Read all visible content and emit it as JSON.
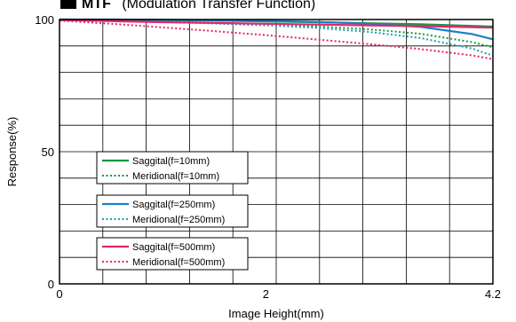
{
  "chart_data": {
    "type": "line",
    "title": "MTF  (Modulation Transfer Function)",
    "title_marker": "■",
    "title_bold_part": "MTF",
    "title_rest": "(Modulation Transfer Function)",
    "xlabel": "Image Height(mm)",
    "ylabel": "Response(%)",
    "xlim": [
      0,
      4.2
    ],
    "ylim": [
      0,
      100
    ],
    "x_ticks": [
      "0",
      "2",
      "4.2"
    ],
    "y_ticks": [
      "0",
      "50",
      "100"
    ],
    "grid": true,
    "legend_position": "lower-left",
    "legend_groups": [
      [
        "Saggital(f=10mm)",
        "Meridional(f=10mm)"
      ],
      [
        "Saggital(f=250mm)",
        "Meridional(f=250mm)"
      ],
      [
        "Saggital(f=500mm)",
        "Meridional(f=500mm)"
      ]
    ],
    "series": [
      {
        "name": "Saggital(f=10mm)",
        "color": "#1a9641",
        "style": "solid",
        "x": [
          0,
          0.5,
          1.0,
          1.5,
          2.0,
          2.5,
          3.0,
          3.5,
          4.0,
          4.2
        ],
        "y": [
          100,
          99.9,
          99.8,
          99.6,
          99.3,
          99.0,
          98.6,
          98.2,
          97.6,
          97.3
        ]
      },
      {
        "name": "Meridional(f=10mm)",
        "color": "#1a9641",
        "style": "dotted",
        "x": [
          0,
          0.5,
          1.0,
          1.5,
          2.0,
          2.5,
          3.0,
          3.5,
          4.0,
          4.2
        ],
        "y": [
          100,
          99.7,
          99.3,
          98.8,
          98.2,
          97.4,
          96.3,
          94.6,
          91.4,
          89.5
        ]
      },
      {
        "name": "Saggital(f=250mm)",
        "color": "#1a7fc4",
        "style": "solid",
        "x": [
          0,
          0.5,
          1.0,
          1.5,
          2.0,
          2.5,
          3.0,
          3.5,
          4.0,
          4.2
        ],
        "y": [
          100,
          100,
          99.9,
          99.7,
          99.5,
          99.1,
          98.4,
          97.2,
          94.5,
          92.5
        ]
      },
      {
        "name": "Meridional(f=250mm)",
        "color": "#1a9fb4",
        "style": "dotted",
        "x": [
          0,
          0.5,
          1.0,
          1.5,
          2.0,
          2.5,
          3.0,
          3.5,
          4.0,
          4.2
        ],
        "y": [
          100,
          99.6,
          99.1,
          98.5,
          97.8,
          96.8,
          95.3,
          93.0,
          89.0,
          86.3
        ]
      },
      {
        "name": "Saggital(f=500mm)",
        "color": "#e8246e",
        "style": "solid",
        "x": [
          0,
          0.5,
          1.0,
          1.5,
          2.0,
          2.5,
          3.0,
          3.5,
          4.0,
          4.2
        ],
        "y": [
          99.8,
          99.4,
          99.0,
          98.7,
          98.4,
          98.1,
          97.8,
          97.5,
          97.1,
          96.9
        ]
      },
      {
        "name": "Meridional(f=500mm)",
        "color": "#e8246e",
        "style": "dotted",
        "x": [
          0,
          0.5,
          1.0,
          1.5,
          2.0,
          2.5,
          3.0,
          3.5,
          4.0,
          4.2
        ],
        "y": [
          99.6,
          98.4,
          97.0,
          95.6,
          94.1,
          92.4,
          90.7,
          88.8,
          86.4,
          85.0
        ]
      }
    ]
  }
}
